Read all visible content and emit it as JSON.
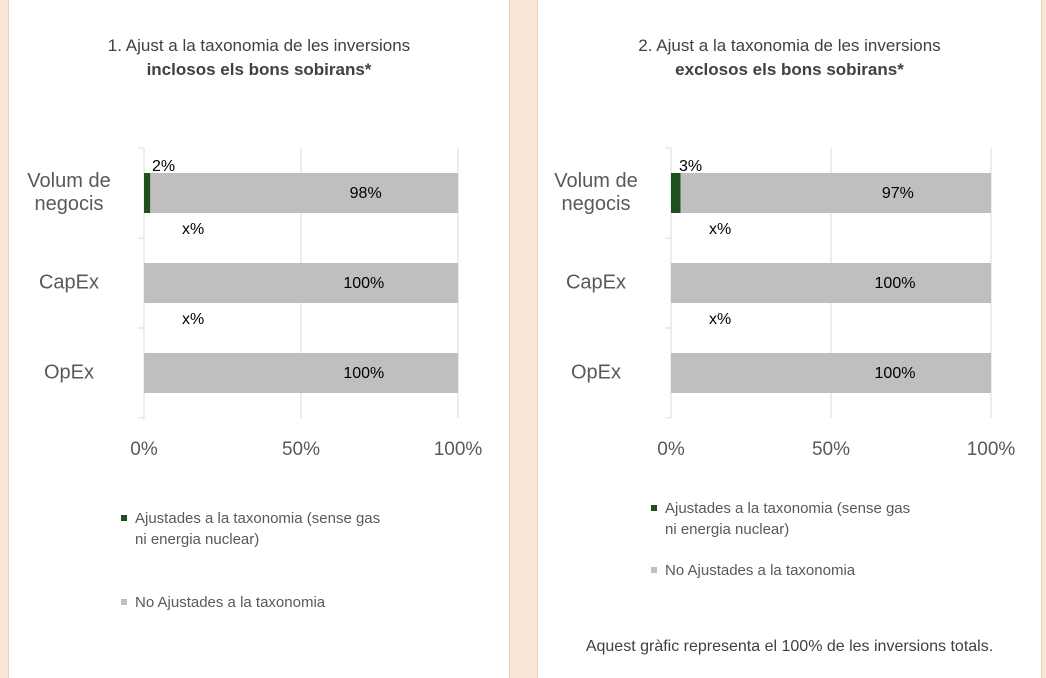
{
  "chart_data": [
    {
      "type": "bar",
      "orientation": "horizontal",
      "stacked": true,
      "title": "1. Ajust a la taxonomia de les inversions",
      "subtitle": "inclosos els bons sobirans*",
      "categories": [
        "Volum de negocis",
        "CapEx",
        "OpEx"
      ],
      "series": [
        {
          "name": "Ajustades a la taxonomia (sense gas ni energia nuclear)",
          "color": "#1f4e1f",
          "values": [
            2,
            0,
            0
          ],
          "value_labels": [
            "2%",
            "x%",
            "x%"
          ]
        },
        {
          "name": "No Ajustades a la taxonomia",
          "color": "#bfbfbf",
          "values": [
            98,
            100,
            100
          ],
          "value_labels": [
            "98%",
            "100%",
            "100%"
          ]
        }
      ],
      "xlim": [
        0,
        100
      ],
      "xticks": [
        {
          "value": 0,
          "label": "0%"
        },
        {
          "value": 50,
          "label": "50%"
        },
        {
          "value": 100,
          "label": "100%"
        }
      ],
      "grid": true
    },
    {
      "type": "bar",
      "orientation": "horizontal",
      "stacked": true,
      "title": "2. Ajust a la taxonomia de les inversions",
      "subtitle": "exclosos els bons sobirans*",
      "categories": [
        "Volum de negocis",
        "CapEx",
        "OpEx"
      ],
      "series": [
        {
          "name": "Ajustades a la taxonomia (sense gas ni energia nuclear)",
          "color": "#1f4e1f",
          "values": [
            3,
            0,
            0
          ],
          "value_labels": [
            "3%",
            "x%",
            "x%"
          ]
        },
        {
          "name": "No Ajustades a la taxonomia",
          "color": "#bfbfbf",
          "values": [
            97,
            100,
            100
          ],
          "value_labels": [
            "97%",
            "100%",
            "100%"
          ]
        }
      ],
      "xlim": [
        0,
        100
      ],
      "xticks": [
        {
          "value": 0,
          "label": "0%"
        },
        {
          "value": 50,
          "label": "50%"
        },
        {
          "value": 100,
          "label": "100%"
        }
      ],
      "grid": true,
      "note": "Aquest gràfic representa el 100% de les inversions totals."
    }
  ]
}
